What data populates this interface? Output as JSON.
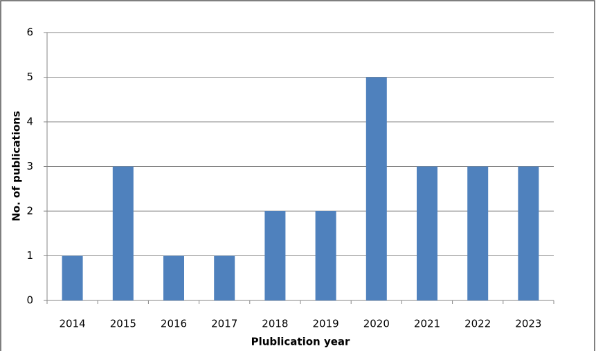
{
  "chart_data": {
    "type": "bar",
    "x_label": "Plublication year",
    "y_label": "No. of publications",
    "categories": [
      "2014",
      "2015",
      "2016",
      "2017",
      "2018",
      "2019",
      "2020",
      "2021",
      "2022",
      "2023"
    ],
    "values": [
      1,
      3,
      1,
      1,
      2,
      2,
      5,
      3,
      3,
      3
    ],
    "color": "#4f81bd",
    "ylim": [
      0,
      6
    ],
    "yticks": [
      0,
      1,
      2,
      3,
      4,
      5,
      6
    ],
    "grid": true
  }
}
